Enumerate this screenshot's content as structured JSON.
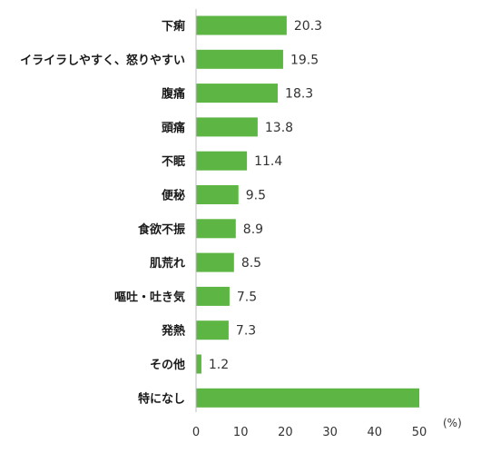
{
  "colors": {
    "bar": "#5db543",
    "axis": "#bfbfbf",
    "text": "#1a1a1a"
  },
  "chart_data": {
    "type": "bar",
    "orientation": "horizontal",
    "categories": [
      "下痢",
      "イライラしやすく、怒りやすい",
      "腹痛",
      "頭痛",
      "不眠",
      "便秘",
      "食欲不振",
      "肌荒れ",
      "嘔吐・吐き気",
      "発熱",
      "その他",
      "特になし"
    ],
    "values": [
      20.3,
      19.5,
      18.3,
      13.8,
      11.4,
      9.5,
      8.9,
      8.5,
      7.5,
      7.3,
      1.2,
      50.0
    ],
    "value_labels": [
      "20.3",
      "19.5",
      "18.3",
      "13.8",
      "11.4",
      "9.5",
      "8.9",
      "8.5",
      "7.5",
      "7.3",
      "1.2",
      ""
    ],
    "xlim": [
      0,
      50
    ],
    "xticks": [
      "0",
      "10",
      "20",
      "30",
      "40",
      "50"
    ],
    "unit": "(%)",
    "grid": false,
    "legend": false
  }
}
